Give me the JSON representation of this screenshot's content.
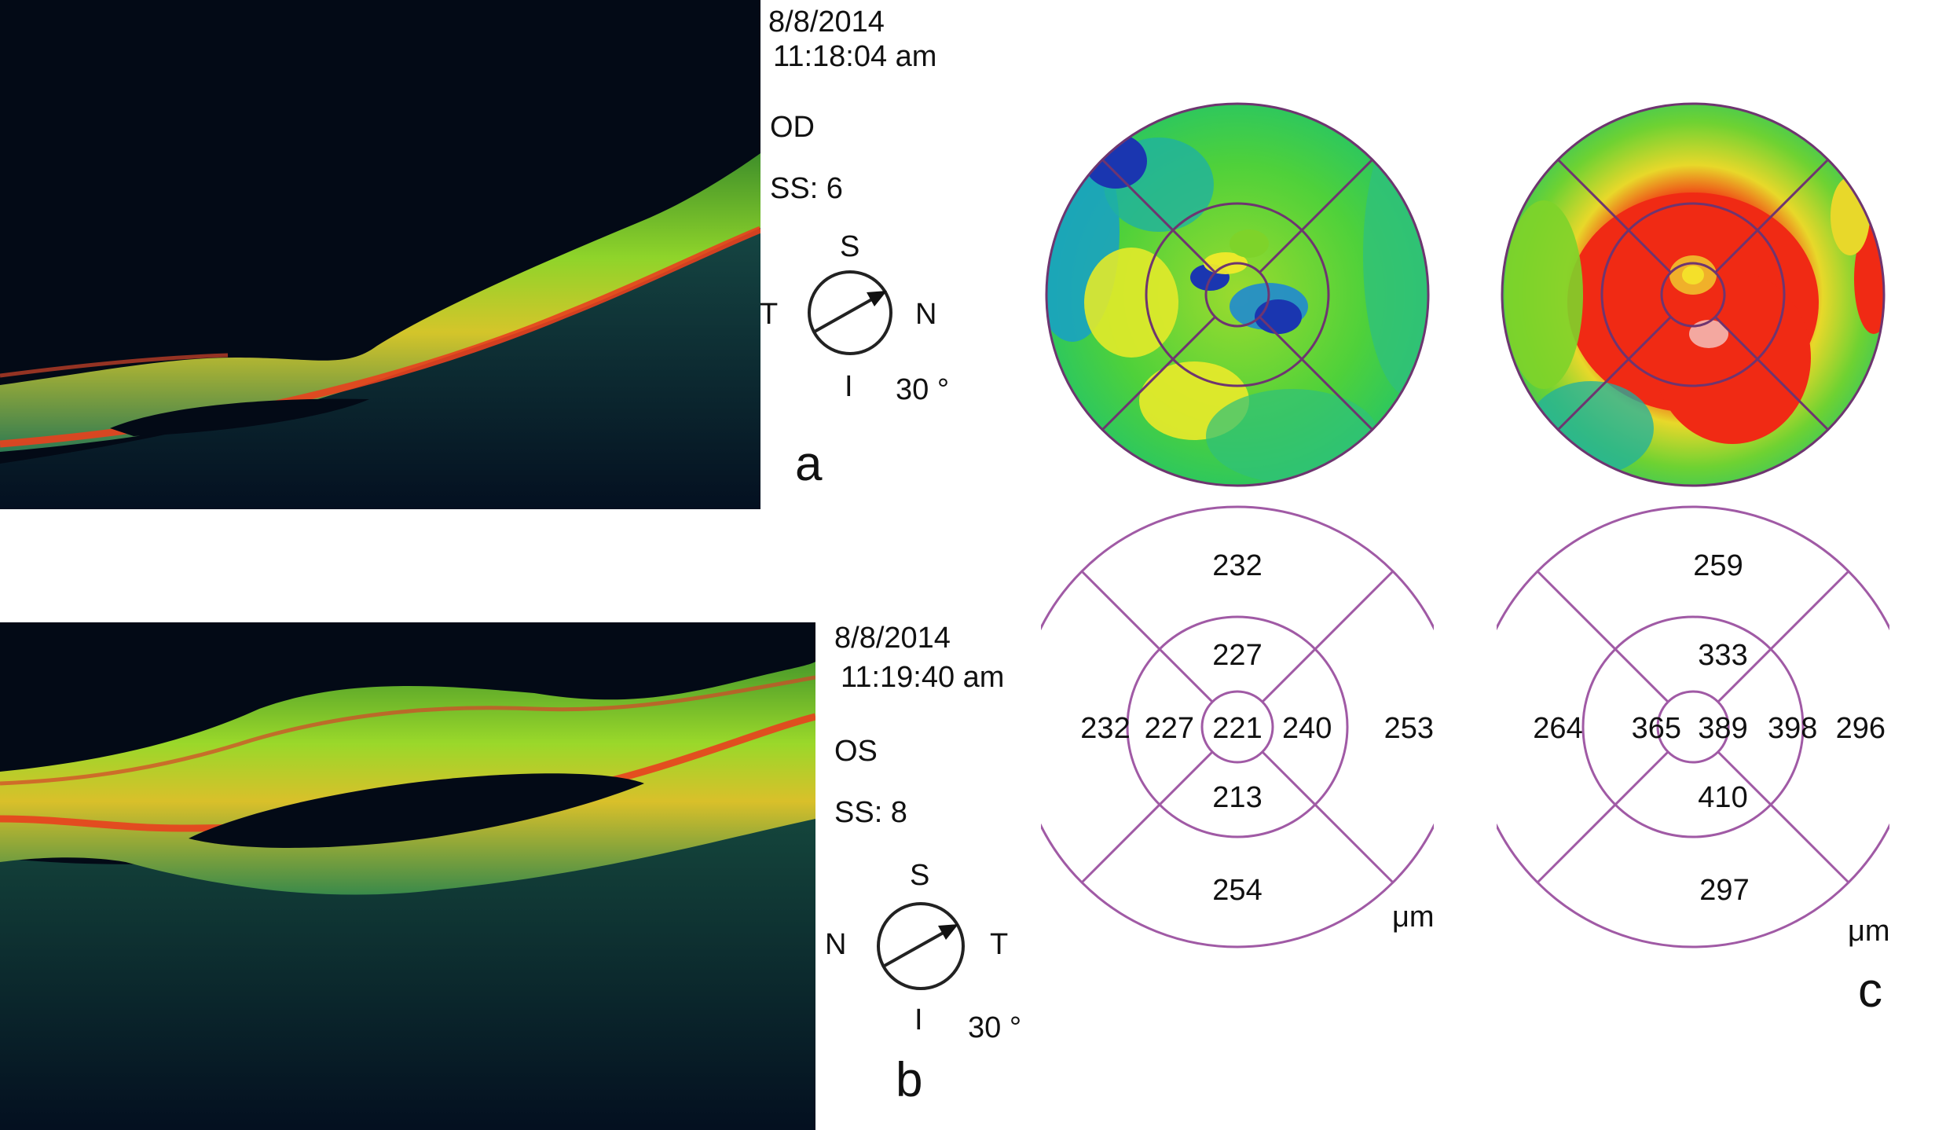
{
  "scans": {
    "a": {
      "date": "8/8/2014",
      "time": "11:18:04 am",
      "eye": "OD",
      "ss": "SS: 6",
      "compass": {
        "top": "S",
        "bottom": "I",
        "left": "T",
        "right": "N"
      },
      "angle": "30 °",
      "panel": "a"
    },
    "b": {
      "date": "8/8/2014",
      "time": "11:19:40 am",
      "eye": "OS",
      "ss": "SS: 8",
      "compass": {
        "top": "S",
        "bottom": "I",
        "left": "N",
        "right": "T"
      },
      "angle": "30 °",
      "panel": "b"
    }
  },
  "thickness": {
    "panel": "c",
    "unit": "μm",
    "left": {
      "outer_top": "232",
      "outer_left": "232",
      "outer_right": "253",
      "outer_bottom": "254",
      "inner_top": "227",
      "inner_left": "227",
      "inner_right": "240",
      "inner_bottom": "213",
      "center": "221"
    },
    "right": {
      "outer_top": "259",
      "outer_left": "264",
      "outer_right": "296",
      "outer_bottom": "297",
      "inner_top": "333",
      "inner_left": "365",
      "inner_right": "398",
      "inner_bottom": "410",
      "center": "389"
    }
  },
  "colors": {
    "ring_line": "#7a3a7a",
    "grid_line": "#a05aa5",
    "scan_bg": "#030a16",
    "retina_green": "#7ed32a",
    "retina_red": "#e8401e",
    "thin_blue": "#1a36b0",
    "thick_red": "#f02a14"
  }
}
